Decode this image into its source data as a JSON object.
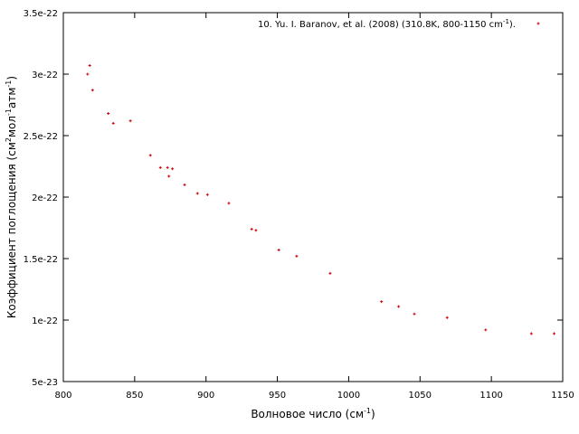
{
  "chart_data": {
    "type": "scatter",
    "xlabel": "Волновое число (см",
    "xlabel_sup": "-1",
    "xlabel_end": ")",
    "ylabel_parts": [
      "Коэффициент поглощения (см",
      "2",
      "мол",
      "-1",
      "атм",
      "-1",
      ")"
    ],
    "xlim": [
      800,
      1150
    ],
    "ylim": [
      5e-23,
      3.5e-22
    ],
    "x_ticks": [
      800,
      850,
      900,
      950,
      1000,
      1050,
      1100,
      1150
    ],
    "x_tick_labels": [
      "800",
      "850",
      "900",
      "950",
      "1000",
      "1050",
      "1100",
      "1150"
    ],
    "y_ticks": [
      5e-23,
      1e-22,
      1.5e-22,
      2e-22,
      2.5e-22,
      3e-22,
      3.5e-22
    ],
    "y_tick_labels": [
      "5e-23",
      "1e-22",
      "1.5e-22",
      "2e-22",
      "2.5e-22",
      "3e-22",
      "3.5e-22"
    ],
    "legend_position": "top-right",
    "grid": false,
    "series": [
      {
        "name": "10. Yu. I. Baranov, et al. (2008) (310.8K, 800-1150 cm",
        "name_sup": "-1",
        "name_end": ").",
        "color": "#cc0000",
        "points": [
          [
            817,
            3e-22
          ],
          [
            818.5,
            3.07e-22
          ],
          [
            820.5,
            2.87e-22
          ],
          [
            831.5,
            2.68e-22
          ],
          [
            835,
            2.6e-22
          ],
          [
            847,
            2.62e-22
          ],
          [
            861,
            2.34e-22
          ],
          [
            868,
            2.24e-22
          ],
          [
            873,
            2.24e-22
          ],
          [
            874,
            2.17e-22
          ],
          [
            876.5,
            2.23e-22
          ],
          [
            885,
            2.1e-22
          ],
          [
            894,
            2.03e-22
          ],
          [
            901,
            2.02e-22
          ],
          [
            916,
            1.95e-22
          ],
          [
            932,
            1.74e-22
          ],
          [
            935,
            1.73e-22
          ],
          [
            951,
            1.57e-22
          ],
          [
            963.5,
            1.52e-22
          ],
          [
            987,
            1.38e-22
          ],
          [
            1023,
            1.15e-22
          ],
          [
            1035,
            1.11e-22
          ],
          [
            1046,
            1.05e-22
          ],
          [
            1069,
            1.02e-22
          ],
          [
            1096,
            9.2e-23
          ],
          [
            1128,
            8.9e-23
          ],
          [
            1144,
            8.9e-23
          ]
        ]
      }
    ]
  }
}
